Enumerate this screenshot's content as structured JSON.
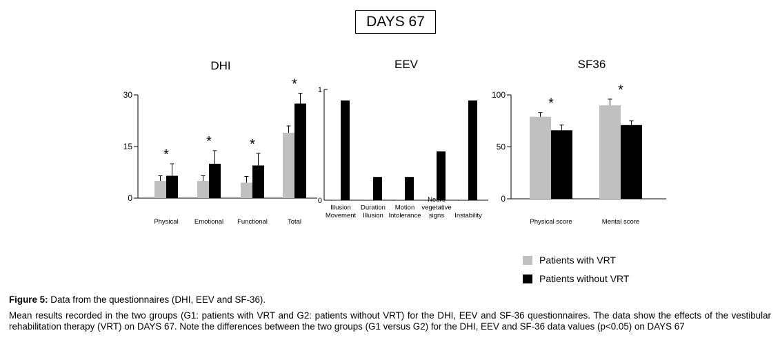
{
  "days_label": "DAYS 67",
  "colors": {
    "with_vrt": "#c0c0c0",
    "without_vrt": "#000000"
  },
  "legend": [
    {
      "label": "Patients with VRT",
      "color": "#c0c0c0"
    },
    {
      "label": "Patients without VRT",
      "color": "#000000"
    }
  ],
  "caption": {
    "title_bold": "Figure 5:",
    "title_rest": " Data from the questionnaires (DHI, EEV and SF-36).",
    "body": "Mean results recorded in the two groups (G1: patients with VRT and G2: patients without VRT) for the DHI, EEV and SF-36 questionnaires. The data show the effects of the vestibular rehabilitation therapy (VRT) on DAYS 67. Note the differences between the two groups (G1 versus G2) for the DHI, EEV and SF-36 data values (p<0.05) on DAYS 67"
  },
  "chart_data": [
    {
      "type": "bar",
      "title": "DHI",
      "categories": [
        [
          "Physical"
        ],
        [
          "Emotional"
        ],
        [
          "Functional"
        ],
        [
          "Total"
        ]
      ],
      "ylim": [
        0,
        30
      ],
      "yticks": [
        0,
        15,
        30
      ],
      "series": [
        {
          "name": "Patients with VRT",
          "values": [
            5,
            5,
            4.5,
            19
          ],
          "errors": [
            1.5,
            1.5,
            1.8,
            2
          ]
        },
        {
          "name": "Patients without VRT",
          "values": [
            6.5,
            10,
            9.5,
            27.5
          ],
          "errors": [
            3.5,
            3.8,
            3.5,
            3
          ]
        }
      ],
      "annotations": [
        "*",
        "*",
        "*",
        "*"
      ],
      "grid": false
    },
    {
      "type": "bar",
      "title": "EEV",
      "categories": [
        [
          "Illusion",
          "Movement"
        ],
        [
          "Duration",
          "Illusion"
        ],
        [
          "Motion",
          "Intolerance"
        ],
        [
          "Neuro",
          "vegetative",
          "signs"
        ],
        [
          "Instability"
        ]
      ],
      "ylim": [
        0,
        1
      ],
      "yticks": [
        0,
        1
      ],
      "series": [
        {
          "name": "Patients with VRT",
          "values": [
            0.01,
            0.01,
            0.01,
            0.01,
            0.01
          ]
        },
        {
          "name": "Patients without VRT",
          "values": [
            0.9,
            0.21,
            0.21,
            0.44,
            0.9
          ]
        }
      ],
      "grid": false
    },
    {
      "type": "bar",
      "title": "SF36",
      "categories": [
        [
          "Physical score"
        ],
        [
          "Mental score"
        ]
      ],
      "ylim": [
        0,
        100
      ],
      "yticks": [
        0,
        50,
        100
      ],
      "series": [
        {
          "name": "Patients with VRT",
          "values": [
            79,
            90
          ],
          "errors": [
            4,
            6
          ]
        },
        {
          "name": "Patients without VRT",
          "values": [
            66,
            71
          ],
          "errors": [
            5,
            4
          ]
        }
      ],
      "annotations": [
        "*",
        "*"
      ],
      "grid": false
    }
  ]
}
